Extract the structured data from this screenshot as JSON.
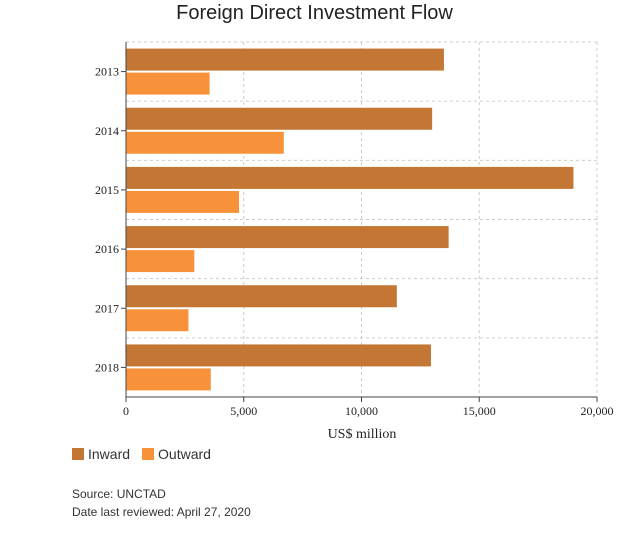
{
  "chart_data": {
    "type": "bar",
    "orientation": "horizontal",
    "title": "Foreign Direct Investment Flow",
    "xlabel": "US$ million",
    "ylabel": "",
    "categories": [
      "2013",
      "2014",
      "2015",
      "2016",
      "2017",
      "2018"
    ],
    "series": [
      {
        "name": "Inward",
        "color": "#c47734",
        "values": [
          13500,
          13000,
          19000,
          13700,
          11500,
          12950
        ]
      },
      {
        "name": "Outward",
        "color": "#f7923a",
        "values": [
          3550,
          6700,
          4800,
          2900,
          2650,
          3600
        ]
      }
    ],
    "xlim": [
      0,
      20000
    ],
    "xticks": [
      "0",
      "5,000",
      "10,000",
      "15,000",
      "20,000"
    ],
    "grid": true,
    "legend_position": "bottom-left"
  },
  "footer": {
    "source": "Source: UNCTAD",
    "reviewed": "Date last reviewed: April 27, 2020"
  }
}
